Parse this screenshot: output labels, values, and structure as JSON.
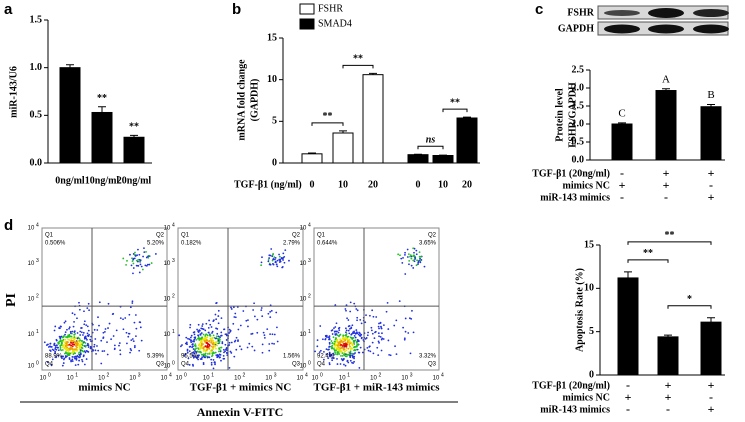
{
  "panel_labels": [
    "a",
    "b",
    "c",
    "d"
  ],
  "chart_data": [
    {
      "type": "bar",
      "ylabel": "miR-143/U6",
      "categories": [
        "0ng/ml",
        "10ng/ml",
        "20ng/ml"
      ],
      "values": [
        1.0,
        0.53,
        0.27
      ],
      "errors": [
        0.03,
        0.06,
        0.02
      ],
      "color": "#000000",
      "ylim": [
        0,
        1.5
      ],
      "yticks": [
        {
          "value": 0,
          "label": "0.0"
        },
        0.5,
        {
          "value": 1,
          "label": "1.0"
        },
        1.5
      ],
      "annotations": [
        "**",
        "**"
      ]
    },
    {
      "type": "grouped_bar",
      "ylabel": [
        "mRNA fold change",
        "(GAPDH)"
      ],
      "xlabel": "TGF-β1 (ng/ml)",
      "categories": [
        "0",
        "10",
        "20"
      ],
      "series": [
        {
          "name": "FSHR",
          "color": "#ffffff",
          "values": [
            1.1,
            3.6,
            10.6
          ],
          "errors": [
            0.1,
            0.25,
            0.15
          ]
        },
        {
          "name": "SMAD4",
          "color": "#000000",
          "values": [
            1.0,
            0.9,
            5.4
          ],
          "errors": [
            0.05,
            0.05,
            0.1
          ]
        }
      ],
      "ylim": [
        0,
        15
      ],
      "yticks": [
        0,
        5,
        10,
        15
      ],
      "annotations": [
        "**",
        "**",
        "ns",
        "**"
      ]
    },
    {
      "type": "bar",
      "ylabel": [
        "Protein level",
        "FSHR/GAPDH"
      ],
      "blot_rows": [
        "FSHR",
        "GAPDH"
      ],
      "values": [
        1.0,
        1.93,
        1.48
      ],
      "errors": [
        0.03,
        0.05,
        0.06
      ],
      "color": "#000000",
      "ylim": [
        0,
        2.5
      ],
      "yticks": [
        {
          "value": 0,
          "label": "0.0"
        },
        0.5,
        {
          "value": 1,
          "label": "1.0"
        },
        1.5,
        {
          "value": 2,
          "label": "2.0"
        },
        2.5
      ],
      "letters": [
        "C",
        "A",
        "B"
      ],
      "conditions": [
        {
          "name": "TGF-β1 (20ng/ml)",
          "signs": [
            "-",
            "+",
            "+"
          ]
        },
        {
          "name": "mimics NC",
          "signs": [
            "+",
            "+",
            "-"
          ]
        },
        {
          "name": "miR-143 mimics",
          "signs": [
            "-",
            "-",
            "+"
          ]
        }
      ]
    },
    {
      "type": "bar",
      "ylabel": "Apoptosis Rate (%)",
      "values": [
        11.2,
        4.4,
        6.1
      ],
      "errors": [
        0.7,
        0.2,
        0.5
      ],
      "color": "#000000",
      "ylim": [
        0,
        15
      ],
      "yticks": [
        0,
        5,
        10,
        15
      ],
      "annotations": [
        "**",
        "**",
        "*"
      ],
      "conditions": [
        {
          "name": "TGF-β1 (20ng/ml)",
          "signs": [
            "-",
            "+",
            "+"
          ]
        },
        {
          "name": "mimics NC",
          "signs": [
            "+",
            "+",
            "-"
          ]
        },
        {
          "name": "miR-143 mimics",
          "signs": [
            "-",
            "-",
            "+"
          ]
        }
      ]
    }
  ],
  "flow_cytometry": {
    "ylabel": "PI",
    "xlabel": "Annexin V-FITC",
    "tick_base": "10",
    "tick_exponents": [
      "0",
      "1",
      "2",
      "3",
      "4"
    ],
    "plots": [
      {
        "caption": "mimics NC",
        "quadrants": [
          {
            "name": "Q1",
            "value": "0.506%"
          },
          {
            "name": "Q2",
            "value": "5.20%"
          },
          {
            "name": "Q4",
            "value": "88.9%"
          },
          {
            "name": "Q3",
            "value": "5.39%"
          }
        ]
      },
      {
        "caption": "TGF-β1 + mimics NC",
        "quadrants": [
          {
            "name": "Q1",
            "value": "0.182%"
          },
          {
            "name": "Q2",
            "value": "2.79%"
          },
          {
            "name": "Q4",
            "value": "95.5%"
          },
          {
            "name": "Q3",
            "value": "1.56%"
          }
        ]
      },
      {
        "caption": "TGF-β1 + miR-143 mimics",
        "quadrants": [
          {
            "name": "Q1",
            "value": "0.644%"
          },
          {
            "name": "Q2",
            "value": "3.65%"
          },
          {
            "name": "Q4",
            "value": "92.4%"
          },
          {
            "name": "Q3",
            "value": "3.32%"
          }
        ]
      }
    ]
  }
}
